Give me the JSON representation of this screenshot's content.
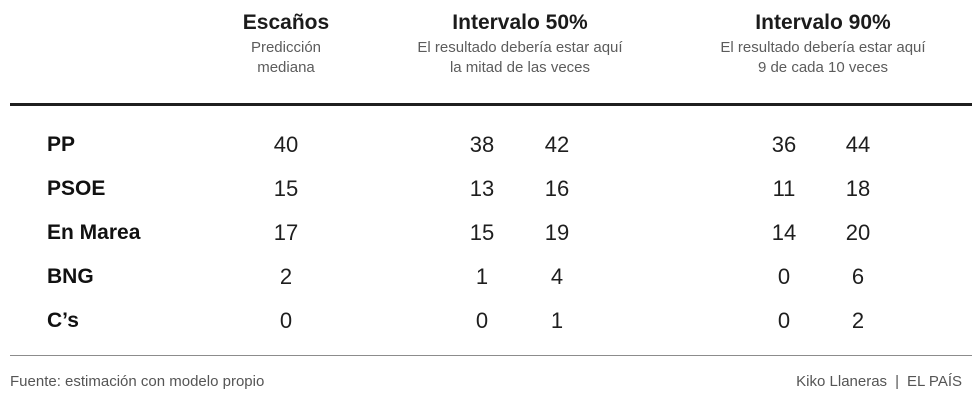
{
  "columns": {
    "seats": {
      "title": "Escaños",
      "sub1": "Predicción",
      "sub2": "mediana"
    },
    "interval50": {
      "title": "Intervalo 50%",
      "sub1": "El resultado debería estar aquí",
      "sub2": "la mitad de las veces"
    },
    "interval90": {
      "title": "Intervalo 90%",
      "sub1": "El resultado debería estar aquí",
      "sub2": "9 de cada 10 veces"
    }
  },
  "rows": [
    {
      "party": "PP",
      "seats": "40",
      "i50_low": "38",
      "i50_high": "42",
      "i90_low": "36",
      "i90_high": "44"
    },
    {
      "party": "PSOE",
      "seats": "15",
      "i50_low": "13",
      "i50_high": "16",
      "i90_low": "11",
      "i90_high": "18"
    },
    {
      "party": "En Marea",
      "seats": "17",
      "i50_low": "15",
      "i50_high": "19",
      "i90_low": "14",
      "i90_high": "20"
    },
    {
      "party": "BNG",
      "seats": "2",
      "i50_low": "1",
      "i50_high": "4",
      "i90_low": "0",
      "i90_high": "6"
    },
    {
      "party": "C’s",
      "seats": "0",
      "i50_low": "0",
      "i50_high": "1",
      "i90_low": "0",
      "i90_high": "2"
    }
  ],
  "footer": {
    "source": "Fuente: estimación con modelo propio",
    "author": "Kiko Llaneras",
    "separator": "|",
    "publication": "EL PAÍS"
  }
}
